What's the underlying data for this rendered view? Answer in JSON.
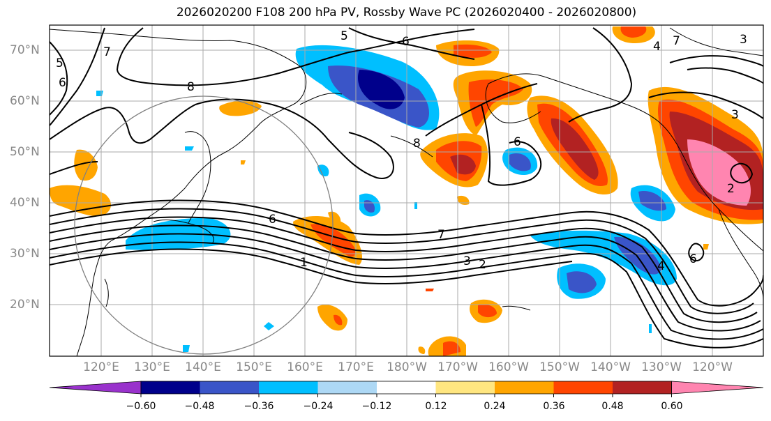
{
  "title": "2026020200 F108 200 hPa PV, Rossby Wave PC (2026020400 - 2026020800)",
  "lat_labels": [
    "70°N",
    "60°N",
    "50°N",
    "40°N",
    "30°N",
    "20°N"
  ],
  "lon_labels": [
    "120°E",
    "130°E",
    "140°E",
    "150°E",
    "160°E",
    "170°E",
    "180°W",
    "170°W",
    "160°W",
    "150°W",
    "140°W",
    "130°W",
    "120°W"
  ],
  "colorbar": {
    "ticks": [
      "−0.60",
      "−0.48",
      "−0.36",
      "−0.24",
      "−0.12",
      "0.12",
      "0.24",
      "0.36",
      "0.48",
      "0.60"
    ],
    "colors": [
      "#9932cc",
      "#00008b",
      "#3a55c8",
      "#00bfff",
      "#add8f5",
      "#ffffff",
      "#ffe680",
      "#ffa500",
      "#ff4500",
      "#b22222",
      "#ff85b0"
    ]
  },
  "contour_labels": [
    "5",
    "6",
    "7",
    "5",
    "6",
    "8",
    "7",
    "8",
    "6",
    "1",
    "7",
    "3",
    "2",
    "3",
    "2",
    "6",
    "4",
    "6",
    "4",
    "3"
  ]
}
